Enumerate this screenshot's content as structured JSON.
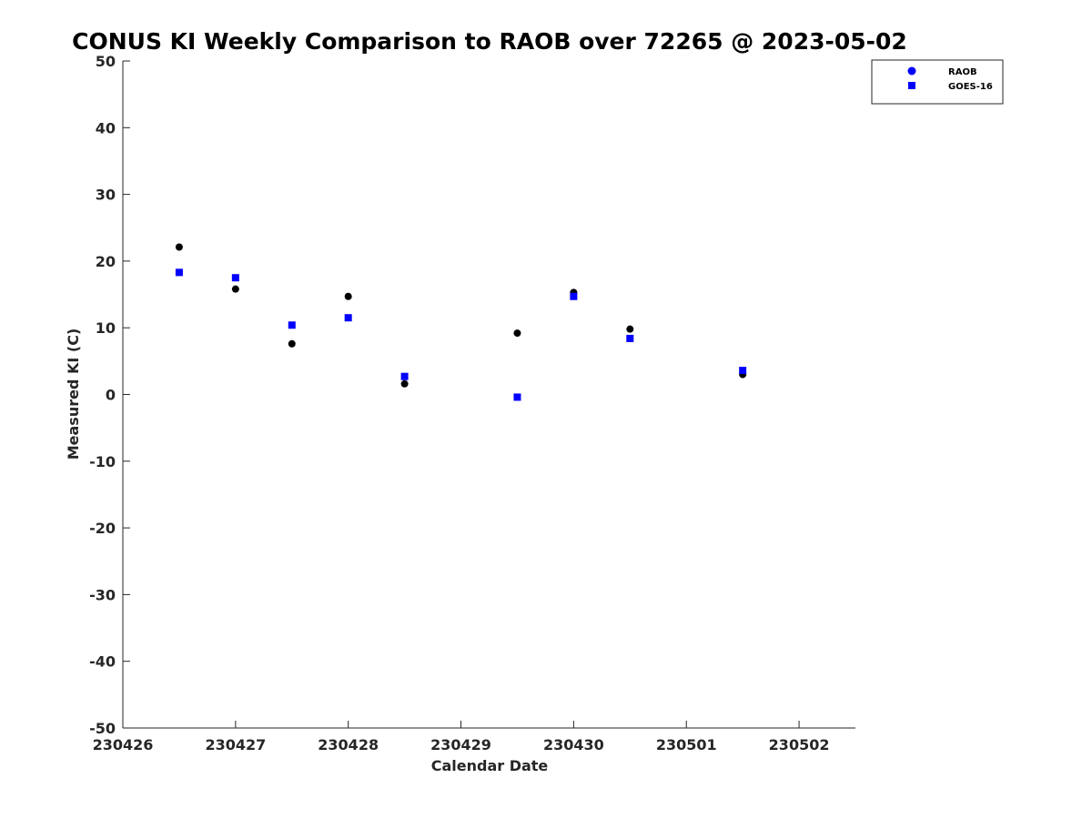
{
  "chart_data": {
    "type": "scatter",
    "title": "CONUS KI Weekly Comparison to RAOB over 72265 @ 2023-05-02",
    "xlabel": "Calendar Date",
    "ylabel": "Measured KI (C)",
    "xlim": [
      0,
      6.5
    ],
    "ylim": [
      -50,
      50
    ],
    "x_ticks": [
      0,
      1,
      2,
      3,
      4,
      5,
      6
    ],
    "x_tick_labels": [
      "230426",
      "230427",
      "230428",
      "230429",
      "230430",
      "230501",
      "230502"
    ],
    "y_ticks": [
      50,
      40,
      30,
      20,
      10,
      0,
      -10,
      -20,
      -30,
      -40,
      -50
    ],
    "y_tick_labels": [
      "50",
      "40",
      "30",
      "20",
      "10",
      "0",
      "-10",
      "-20",
      "-30",
      "-40",
      "-50"
    ],
    "grid": false,
    "legend_position": "top-right",
    "series": [
      {
        "name": "RAOB",
        "marker": "circle",
        "color": "#000000",
        "legend_color": "#0000ff",
        "points": [
          [
            0.5,
            22.1
          ],
          [
            1.0,
            15.8
          ],
          [
            1.5,
            7.6
          ],
          [
            2.0,
            14.7
          ],
          [
            2.5,
            1.6
          ],
          [
            3.5,
            9.2
          ],
          [
            4.0,
            15.3
          ],
          [
            4.5,
            9.8
          ],
          [
            5.5,
            3.0
          ]
        ]
      },
      {
        "name": "GOES-16",
        "marker": "square",
        "color": "#0000ff",
        "legend_color": "#0000ff",
        "points": [
          [
            0.5,
            18.3
          ],
          [
            1.0,
            17.5
          ],
          [
            1.5,
            10.4
          ],
          [
            2.0,
            11.5
          ],
          [
            2.5,
            2.7
          ],
          [
            3.5,
            -0.4
          ],
          [
            4.0,
            14.7
          ],
          [
            4.5,
            8.4
          ],
          [
            5.5,
            3.6
          ]
        ]
      }
    ]
  }
}
